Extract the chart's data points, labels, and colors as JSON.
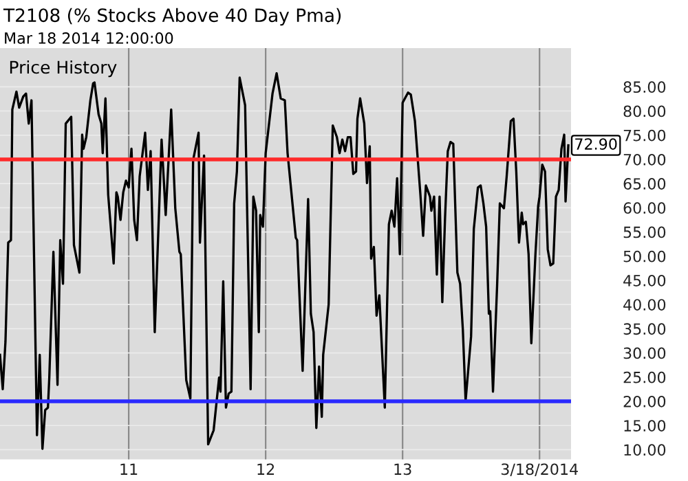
{
  "chart_data": {
    "type": "line",
    "title": "T2108 (% Stocks Above 40 Day Pma)",
    "subtitle": "Mar 18 2014 12:00:00",
    "annotations": [
      "Price History",
      {
        "text": "72.90",
        "x": 14.21,
        "y": 72.9
      }
    ],
    "series": [
      {
        "color": "#000000",
        "x": [
          10.06,
          10.08,
          10.1,
          10.12,
          10.14,
          10.15,
          10.18,
          10.2,
          10.23,
          10.25,
          10.27,
          10.29,
          10.33,
          10.35,
          10.37,
          10.39,
          10.41,
          10.42,
          10.45,
          10.48,
          10.5,
          10.52,
          10.54,
          10.58,
          10.6,
          10.64,
          10.66,
          10.67,
          10.69,
          10.72,
          10.74,
          10.75,
          10.78,
          10.8,
          10.81,
          10.83,
          10.85,
          10.89,
          10.91,
          10.92,
          10.94,
          10.96,
          10.98,
          11.0,
          11.02,
          11.04,
          11.06,
          11.08,
          11.12,
          11.14,
          11.16,
          11.19,
          11.24,
          11.27,
          11.31,
          11.34,
          11.37,
          11.38,
          11.42,
          11.45,
          11.47,
          11.51,
          11.52,
          11.55,
          11.58,
          11.62,
          11.66,
          11.67,
          11.69,
          11.71,
          11.73,
          11.75,
          11.77,
          11.79,
          11.81,
          11.85,
          11.89,
          11.91,
          11.93,
          11.95,
          11.96,
          11.98,
          12.0,
          12.05,
          12.08,
          12.11,
          12.14,
          12.16,
          12.22,
          12.23,
          12.27,
          12.31,
          12.33,
          12.35,
          12.37,
          12.39,
          12.41,
          12.42,
          12.46,
          12.49,
          12.52,
          12.54,
          12.56,
          12.58,
          12.6,
          12.62,
          12.64,
          12.66,
          12.67,
          12.69,
          12.72,
          12.74,
          12.76,
          12.77,
          12.79,
          12.81,
          12.83,
          12.87,
          12.9,
          12.92,
          12.94,
          12.96,
          12.98,
          13.0,
          13.04,
          13.06,
          13.09,
          13.13,
          13.15,
          13.17,
          13.2,
          13.21,
          13.23,
          13.25,
          13.27,
          13.29,
          13.31,
          13.33,
          13.35,
          13.37,
          13.4,
          13.42,
          13.44,
          13.46,
          13.5,
          13.52,
          13.55,
          13.57,
          13.59,
          13.61,
          13.63,
          13.64,
          13.66,
          13.69,
          13.71,
          13.74,
          13.76,
          13.79,
          13.81,
          13.83,
          13.85,
          13.87,
          13.88,
          13.9,
          13.92,
          13.94,
          13.97,
          13.99,
          14.0,
          14.02,
          14.04,
          14.06,
          14.08,
          14.1,
          14.12,
          14.14,
          14.16,
          14.18,
          14.19,
          14.21
        ],
        "values": [
          29.6,
          22.5,
          32.4,
          52.8,
          53.3,
          80.3,
          84,
          80.7,
          83,
          83.6,
          77.4,
          82.2,
          13,
          29.6,
          10.2,
          18.2,
          18.7,
          24.9,
          50.9,
          23.4,
          53.3,
          44.3,
          77.4,
          78.8,
          52.3,
          46.6,
          75.1,
          72.2,
          74.6,
          82.2,
          85.7,
          85.9,
          79.3,
          77.4,
          71.3,
          82.6,
          62.7,
          48.5,
          63.2,
          62.3,
          57.5,
          63.2,
          65.6,
          64.2,
          72.2,
          57.5,
          53.3,
          66.5,
          75.5,
          63.7,
          71.7,
          34.3,
          74.1,
          58.5,
          80.3,
          59.9,
          50.9,
          50.4,
          24.4,
          20.6,
          69.8,
          75.5,
          52.8,
          70.8,
          11.1,
          14,
          24.9,
          22,
          44.8,
          18.7,
          21.6,
          22,
          60.9,
          67.5,
          86.9,
          81.2,
          22.5,
          62.3,
          59.4,
          34.3,
          58.5,
          56.1,
          71.3,
          83.6,
          87.8,
          82.6,
          82.2,
          71.3,
          53.8,
          53.3,
          26.3,
          61.8,
          38.1,
          34.3,
          14.5,
          27.2,
          16.8,
          29.6,
          40,
          77,
          74.6,
          71.3,
          74.1,
          71.7,
          74.6,
          74.6,
          67,
          67.5,
          78.4,
          82.6,
          77.4,
          65.1,
          72.7,
          49.5,
          51.9,
          37.7,
          41.9,
          18.7,
          56.6,
          59.4,
          56.1,
          66.1,
          50.4,
          81.7,
          83.8,
          83.4,
          77.9,
          62.7,
          54.2,
          64.6,
          62.3,
          59.4,
          62.3,
          46.2,
          62.3,
          40.5,
          58,
          71.7,
          73.6,
          73.2,
          46.6,
          44.3,
          34.8,
          20.1,
          33.4,
          55.6,
          64.2,
          64.6,
          60.9,
          56.1,
          38.1,
          38.6,
          22,
          43.8,
          60.9,
          59.9,
          66.5,
          77.9,
          78.4,
          67.5,
          52.8,
          59,
          56.6,
          57.1,
          50.4,
          32,
          50.4,
          60.4,
          62.3,
          68.9,
          67.5,
          51.4,
          48.1,
          48.5,
          62.3,
          63.7,
          72.2,
          75.1,
          61.3,
          72.9
        ]
      }
    ],
    "ref_lines": [
      {
        "axis": "y",
        "value": 70,
        "color": "#ff2a2a"
      },
      {
        "axis": "y",
        "value": 20,
        "color": "#2a2aff"
      }
    ],
    "xlim": [
      10.06,
      14.23
    ],
    "ylim": [
      8,
      93
    ],
    "xticks": [
      11,
      12,
      13,
      {
        "value": 14,
        "label": "3/18/2014"
      }
    ],
    "yticks": [
      {
        "value": 10,
        "label": "10.00"
      },
      {
        "value": 15,
        "label": "15.00"
      },
      {
        "value": 20,
        "label": "20.00"
      },
      {
        "value": 25,
        "label": "25.00"
      },
      {
        "value": 30,
        "label": "30.00"
      },
      {
        "value": 35,
        "label": "35.00"
      },
      {
        "value": 40,
        "label": "40.00"
      },
      {
        "value": 45,
        "label": "45.00"
      },
      {
        "value": 50,
        "label": "50.00"
      },
      {
        "value": 55,
        "label": "55.00"
      },
      {
        "value": 60,
        "label": "60.00"
      },
      {
        "value": 65,
        "label": "65.00"
      },
      {
        "value": 70,
        "label": "70.00"
      },
      {
        "value": 75,
        "label": "75.00"
      },
      {
        "value": 80,
        "label": "80.00"
      },
      {
        "value": 85,
        "label": "85.00"
      }
    ],
    "grid": true,
    "marker": "none",
    "line_style": "solid"
  }
}
